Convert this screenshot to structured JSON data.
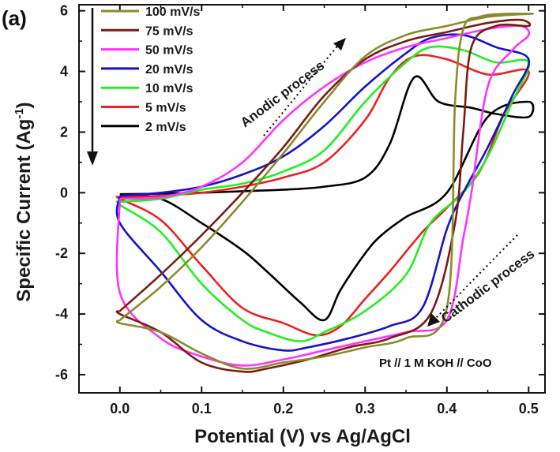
{
  "chart_data": {
    "type": "line",
    "panel_label": "(a)",
    "xlabel": "Potential (V) vs Ag/AgCl",
    "ylabel": "Specific Current (Ag",
    "ylabel_sup": "-1",
    "ylabel_close": ")",
    "xlim": [
      -0.05,
      0.52
    ],
    "ylim": [
      -6.6,
      6.2
    ],
    "x_ticks": [
      "0.0",
      "0.1",
      "0.2",
      "0.3",
      "0.4",
      "0.5"
    ],
    "x_tick_values": [
      0.0,
      0.1,
      0.2,
      0.3,
      0.4,
      0.5
    ],
    "y_ticks": [
      "6",
      "4",
      "2",
      "0",
      "-2",
      "-4",
      "-6"
    ],
    "y_tick_values": [
      6,
      4,
      2,
      0,
      -2,
      -4,
      -6
    ],
    "legend": {
      "placement": "top-left",
      "order_arrow": "down"
    },
    "annotations": {
      "anodic": "Anodic process",
      "cathodic": "Cathodic process",
      "cell": "Pt // 1 M KOH // CoO"
    },
    "series": [
      {
        "name": "100 mV/s",
        "color": "#8b8b2c",
        "x": [
          0.0,
          0.05,
          0.1,
          0.15,
          0.2,
          0.25,
          0.3,
          0.35,
          0.4,
          0.45,
          0.5,
          0.5,
          0.47,
          0.44,
          0.42,
          0.41,
          0.4,
          0.35,
          0.3,
          0.25,
          0.2,
          0.15,
          0.1,
          0.05,
          0.0,
          0.0
        ],
        "y": [
          -4.2,
          -3.1,
          -1.8,
          -0.3,
          1.3,
          3.0,
          4.5,
          5.2,
          5.5,
          5.8,
          5.9,
          5.9,
          5.9,
          5.8,
          5.4,
          3.0,
          -3.8,
          -4.8,
          -5.1,
          -5.4,
          -5.6,
          -5.8,
          -5.3,
          -4.6,
          -4.3,
          -4.2
        ]
      },
      {
        "name": "75 mV/s",
        "color": "#7a1c12",
        "x": [
          0.0,
          0.05,
          0.1,
          0.15,
          0.2,
          0.25,
          0.3,
          0.35,
          0.4,
          0.45,
          0.49,
          0.5,
          0.46,
          0.43,
          0.42,
          0.41,
          0.38,
          0.33,
          0.28,
          0.23,
          0.18,
          0.15,
          0.1,
          0.05,
          0.0,
          0.0
        ],
        "y": [
          -3.9,
          -2.7,
          -1.4,
          0.0,
          1.5,
          3.2,
          4.4,
          5.0,
          5.3,
          5.6,
          5.7,
          5.5,
          5.5,
          4.8,
          2.0,
          -1.0,
          -4.0,
          -4.8,
          -5.1,
          -5.5,
          -5.8,
          -5.9,
          -5.6,
          -4.6,
          -4.0,
          -3.9
        ]
      },
      {
        "name": "50 mV/s",
        "color": "#ff33ff",
        "x": [
          0.0,
          0.05,
          0.1,
          0.15,
          0.2,
          0.25,
          0.3,
          0.35,
          0.4,
          0.45,
          0.49,
          0.5,
          0.48,
          0.45,
          0.43,
          0.42,
          0.4,
          0.35,
          0.3,
          0.25,
          0.2,
          0.15,
          0.1,
          0.05,
          0.0,
          0.0
        ],
        "y": [
          -0.2,
          -0.15,
          0.2,
          1.0,
          2.4,
          3.5,
          4.3,
          4.8,
          5.1,
          5.4,
          5.5,
          5.2,
          4.7,
          3.5,
          0.0,
          -1.5,
          -4.2,
          -4.6,
          -4.9,
          -5.2,
          -5.5,
          -5.7,
          -5.4,
          -4.8,
          -3.3,
          -0.2
        ]
      },
      {
        "name": "20 mV/s",
        "color": "#1414c8",
        "x": [
          0.0,
          0.05,
          0.1,
          0.15,
          0.2,
          0.25,
          0.3,
          0.35,
          0.38,
          0.42,
          0.46,
          0.5,
          0.48,
          0.45,
          0.42,
          0.4,
          0.37,
          0.33,
          0.28,
          0.23,
          0.2,
          0.15,
          0.1,
          0.05,
          0.0,
          0.0
        ],
        "y": [
          -0.1,
          0.0,
          0.2,
          0.6,
          1.2,
          2.2,
          3.5,
          4.6,
          5.1,
          5.2,
          4.8,
          4.4,
          3.2,
          1.5,
          0.0,
          -1.2,
          -3.8,
          -4.4,
          -4.8,
          -5.1,
          -5.2,
          -4.9,
          -4.2,
          -2.6,
          -1.0,
          -0.1
        ]
      },
      {
        "name": "10 mV/s",
        "color": "#22ee22",
        "x": [
          0.0,
          0.05,
          0.1,
          0.15,
          0.2,
          0.25,
          0.3,
          0.35,
          0.38,
          0.42,
          0.46,
          0.5,
          0.48,
          0.45,
          0.42,
          0.38,
          0.35,
          0.3,
          0.25,
          0.22,
          0.18,
          0.15,
          0.1,
          0.05,
          0.0,
          0.0
        ],
        "y": [
          -0.3,
          -0.2,
          0.1,
          0.3,
          0.7,
          1.4,
          3.0,
          4.3,
          4.8,
          4.7,
          4.3,
          4.3,
          3.0,
          1.2,
          0.0,
          -1.0,
          -2.7,
          -3.9,
          -4.6,
          -4.9,
          -4.6,
          -4.2,
          -3.0,
          -1.3,
          -0.4,
          -0.3
        ]
      },
      {
        "name": "5 mV/s",
        "color": "#ee2020",
        "x": [
          0.0,
          0.05,
          0.1,
          0.15,
          0.2,
          0.25,
          0.3,
          0.33,
          0.36,
          0.4,
          0.45,
          0.5,
          0.47,
          0.44,
          0.4,
          0.37,
          0.33,
          0.3,
          0.27,
          0.24,
          0.2,
          0.15,
          0.1,
          0.05,
          0.0,
          0.0
        ],
        "y": [
          -0.15,
          -0.1,
          0.0,
          0.2,
          0.5,
          1.0,
          2.4,
          3.8,
          4.5,
          4.4,
          3.9,
          4.0,
          2.6,
          0.7,
          -0.5,
          -1.3,
          -2.6,
          -3.5,
          -4.4,
          -4.7,
          -4.3,
          -3.8,
          -2.4,
          -0.9,
          -0.2,
          -0.15
        ]
      },
      {
        "name": "2 mV/s",
        "color": "#000000",
        "x": [
          0.0,
          0.05,
          0.1,
          0.15,
          0.2,
          0.25,
          0.3,
          0.33,
          0.36,
          0.39,
          0.43,
          0.46,
          0.5,
          0.5,
          0.45,
          0.4,
          0.35,
          0.32,
          0.3,
          0.27,
          0.25,
          0.22,
          0.18,
          0.15,
          0.1,
          0.05,
          0.0
        ],
        "y": [
          -0.05,
          -0.03,
          0.0,
          0.05,
          0.1,
          0.2,
          0.5,
          1.6,
          3.8,
          3.0,
          2.8,
          2.6,
          2.5,
          3.0,
          2.5,
          0.0,
          -0.8,
          -1.4,
          -2.0,
          -3.2,
          -4.2,
          -3.6,
          -2.6,
          -1.9,
          -1.0,
          -0.2,
          -0.05
        ]
      }
    ]
  }
}
